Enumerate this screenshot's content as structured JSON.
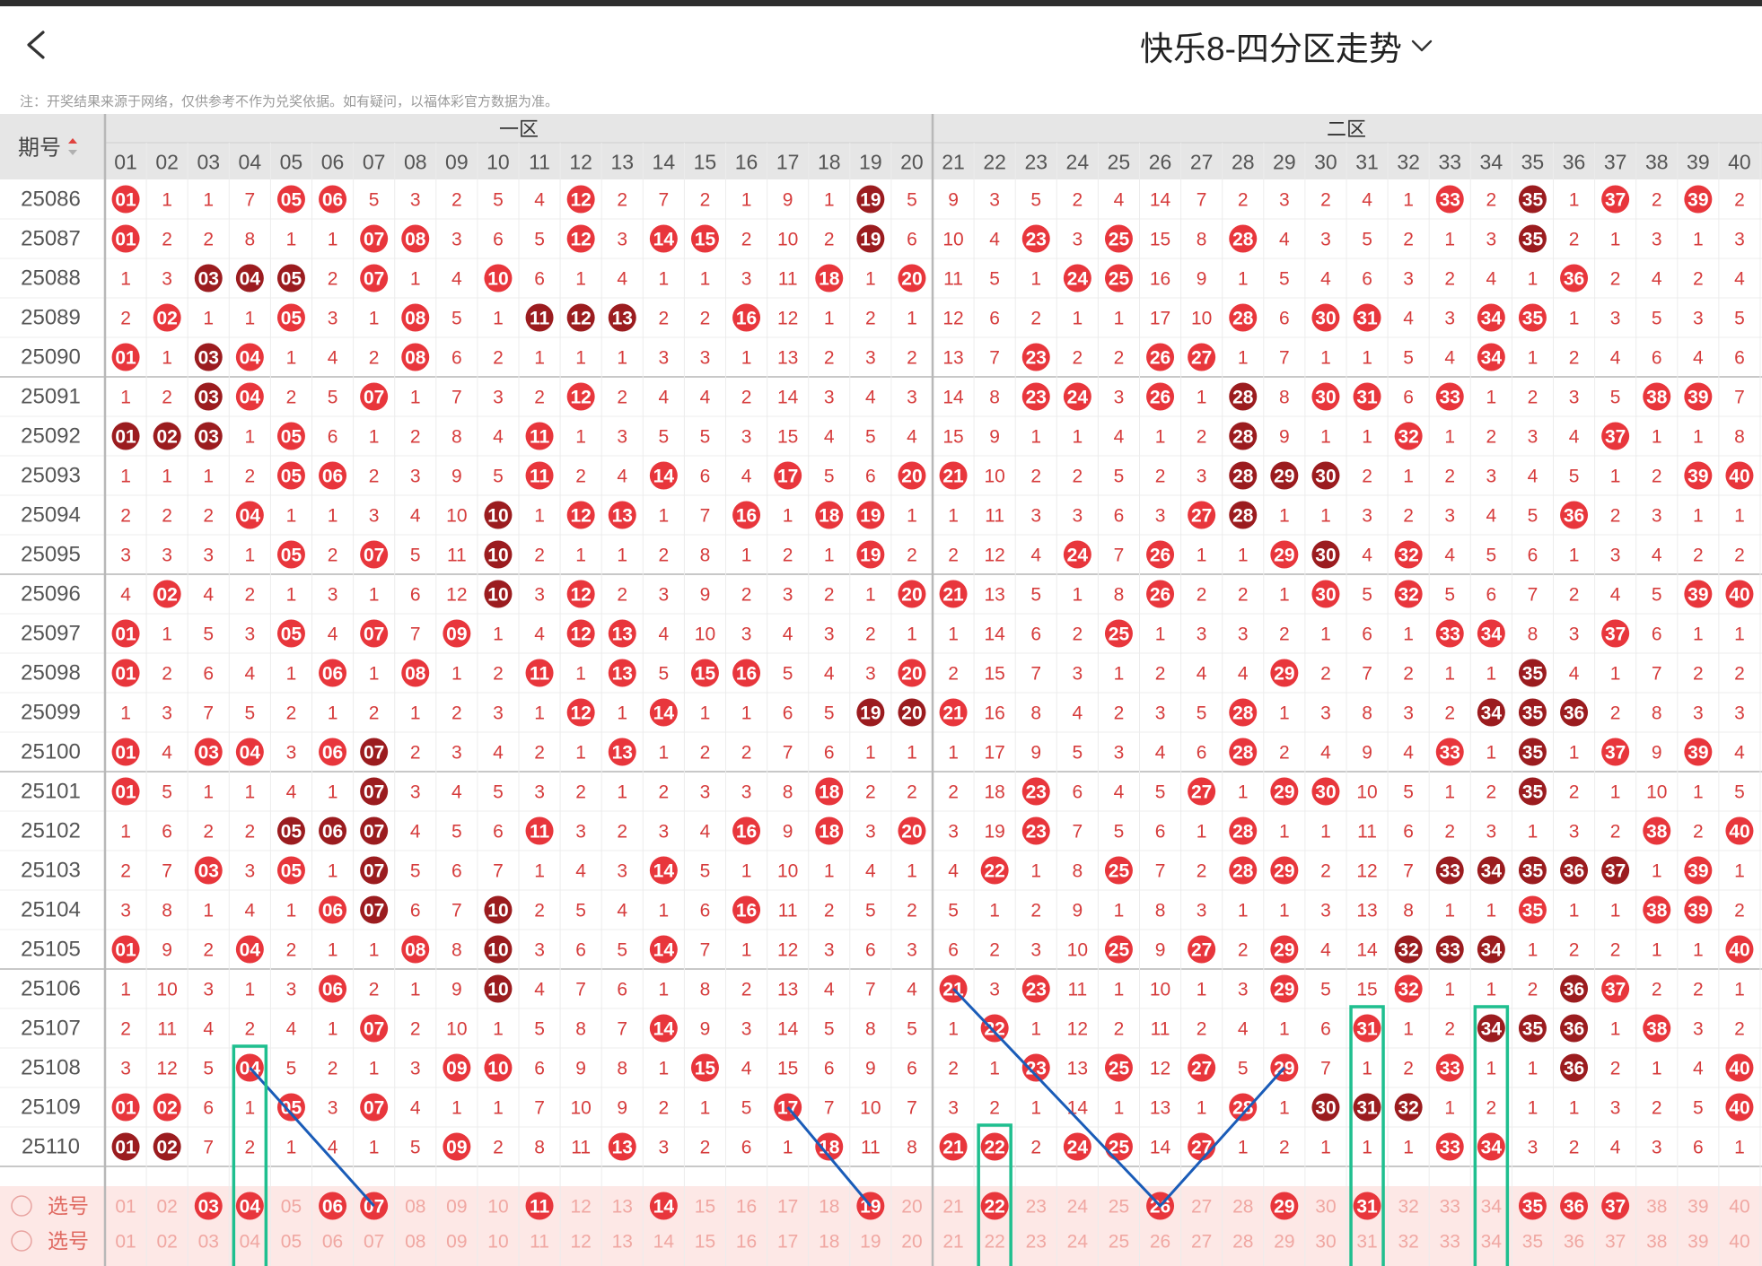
{
  "header": {
    "title": "快乐8-四分区走势",
    "back_icon": "chevron-left-icon",
    "dropdown_icon": "chevron-down-icon"
  },
  "note": "注：开奖结果来源于网络，仅供参考不作为兑奖依据。如有疑问，以福体彩官方数据为准。",
  "table": {
    "period_header": "期号",
    "zones": [
      "一区",
      "二区"
    ],
    "select_label": "选号",
    "colors": {
      "hit": "#e8363c",
      "repeat": "#9b1c1f",
      "miss_text": "#d63c3c",
      "period_text": "#555555",
      "header_bg": "#e6e6e6",
      "select_bg": "#fde8e6",
      "highlight_box": "#1fbf8f",
      "trend_line": "#1a5cb8"
    },
    "rows": [
      {
        "period": "25086",
        "cells": [
          "01",
          "1",
          "1",
          "7",
          "05",
          "06",
          "5",
          "3",
          "2",
          "5",
          "4",
          "12",
          "2",
          "7",
          "2",
          "1",
          "9",
          "1",
          "19",
          "5",
          "9",
          "3",
          "5",
          "2",
          "4",
          "14",
          "7",
          "2",
          "3",
          "2",
          "4",
          "1",
          "33",
          "2",
          "35",
          "1",
          "37",
          "2",
          "39",
          "2"
        ],
        "dark": [
          "19",
          "35"
        ]
      },
      {
        "period": "25087",
        "cells": [
          "01",
          "2",
          "2",
          "8",
          "1",
          "1",
          "07",
          "08",
          "3",
          "6",
          "5",
          "12",
          "3",
          "14",
          "15",
          "2",
          "10",
          "2",
          "19",
          "6",
          "10",
          "4",
          "23",
          "3",
          "25",
          "15",
          "8",
          "28",
          "4",
          "3",
          "5",
          "2",
          "1",
          "3",
          "35",
          "2",
          "1",
          "3",
          "1",
          "3"
        ],
        "dark": [
          "19",
          "35"
        ]
      },
      {
        "period": "25088",
        "cells": [
          "1",
          "3",
          "03",
          "04",
          "05",
          "2",
          "07",
          "1",
          "4",
          "10",
          "6",
          "1",
          "4",
          "1",
          "1",
          "3",
          "11",
          "18",
          "1",
          "20",
          "11",
          "5",
          "1",
          "24",
          "25",
          "16",
          "9",
          "1",
          "5",
          "4",
          "6",
          "3",
          "2",
          "4",
          "1",
          "36",
          "2",
          "4",
          "2",
          "4"
        ],
        "dark": [
          "03",
          "04",
          "05"
        ]
      },
      {
        "period": "25089",
        "cells": [
          "2",
          "02",
          "1",
          "1",
          "05",
          "3",
          "1",
          "08",
          "5",
          "1",
          "11",
          "12",
          "13",
          "2",
          "2",
          "16",
          "12",
          "1",
          "2",
          "1",
          "12",
          "6",
          "2",
          "1",
          "1",
          "17",
          "10",
          "28",
          "6",
          "30",
          "31",
          "4",
          "3",
          "34",
          "35",
          "1",
          "3",
          "5",
          "3",
          "5"
        ],
        "dark": [
          "11",
          "12",
          "13"
        ]
      },
      {
        "period": "25090",
        "cells": [
          "01",
          "1",
          "03",
          "04",
          "1",
          "4",
          "2",
          "08",
          "6",
          "2",
          "1",
          "1",
          "1",
          "3",
          "3",
          "1",
          "13",
          "2",
          "3",
          "2",
          "13",
          "7",
          "23",
          "2",
          "2",
          "26",
          "27",
          "1",
          "7",
          "1",
          "1",
          "5",
          "4",
          "34",
          "1",
          "2",
          "4",
          "6",
          "4",
          "6"
        ],
        "dark": [
          "03"
        ]
      },
      {
        "period": "25091",
        "cells": [
          "1",
          "2",
          "03",
          "04",
          "2",
          "5",
          "07",
          "1",
          "7",
          "3",
          "2",
          "12",
          "2",
          "4",
          "4",
          "2",
          "14",
          "3",
          "4",
          "3",
          "14",
          "8",
          "23",
          "24",
          "3",
          "26",
          "1",
          "28",
          "8",
          "30",
          "31",
          "6",
          "33",
          "1",
          "2",
          "3",
          "5",
          "38",
          "39",
          "7"
        ],
        "dark": [
          "03",
          "28"
        ]
      },
      {
        "period": "25092",
        "cells": [
          "01",
          "02",
          "03",
          "1",
          "05",
          "6",
          "1",
          "2",
          "8",
          "4",
          "11",
          "1",
          "3",
          "5",
          "5",
          "3",
          "15",
          "4",
          "5",
          "4",
          "15",
          "9",
          "1",
          "1",
          "4",
          "1",
          "2",
          "28",
          "9",
          "1",
          "1",
          "32",
          "1",
          "2",
          "3",
          "4",
          "37",
          "1",
          "1",
          "8"
        ],
        "dark": [
          "01",
          "02",
          "03",
          "28"
        ]
      },
      {
        "period": "25093",
        "cells": [
          "1",
          "1",
          "1",
          "2",
          "05",
          "06",
          "2",
          "3",
          "9",
          "5",
          "11",
          "2",
          "4",
          "14",
          "6",
          "4",
          "17",
          "5",
          "6",
          "20",
          "21",
          "10",
          "2",
          "2",
          "5",
          "2",
          "3",
          "28",
          "29",
          "30",
          "2",
          "1",
          "2",
          "3",
          "4",
          "5",
          "1",
          "2",
          "39",
          "40"
        ],
        "dark": [
          "28",
          "29",
          "30"
        ]
      },
      {
        "period": "25094",
        "cells": [
          "2",
          "2",
          "2",
          "04",
          "1",
          "1",
          "3",
          "4",
          "10",
          "10",
          "1",
          "12",
          "13",
          "1",
          "7",
          "16",
          "1",
          "18",
          "19",
          "1",
          "1",
          "11",
          "3",
          "3",
          "6",
          "3",
          "27",
          "28",
          "1",
          "1",
          "3",
          "2",
          "3",
          "4",
          "5",
          "36",
          "2",
          "3",
          "1",
          "1"
        ],
        "dark": [
          "10",
          "28"
        ]
      },
      {
        "period": "25095",
        "cells": [
          "3",
          "3",
          "3",
          "1",
          "05",
          "2",
          "07",
          "5",
          "11",
          "10",
          "2",
          "1",
          "1",
          "2",
          "8",
          "1",
          "2",
          "1",
          "19",
          "2",
          "2",
          "12",
          "4",
          "24",
          "7",
          "26",
          "1",
          "1",
          "29",
          "30",
          "4",
          "32",
          "4",
          "5",
          "6",
          "1",
          "3",
          "4",
          "2",
          "2"
        ],
        "dark": [
          "10",
          "30"
        ]
      },
      {
        "period": "25096",
        "cells": [
          "4",
          "02",
          "4",
          "2",
          "1",
          "3",
          "1",
          "6",
          "12",
          "10",
          "3",
          "12",
          "2",
          "3",
          "9",
          "2",
          "3",
          "2",
          "1",
          "20",
          "21",
          "13",
          "5",
          "1",
          "8",
          "26",
          "2",
          "2",
          "1",
          "30",
          "5",
          "32",
          "5",
          "6",
          "7",
          "2",
          "4",
          "5",
          "39",
          "40"
        ],
        "dark": [
          "10"
        ]
      },
      {
        "period": "25097",
        "cells": [
          "01",
          "1",
          "5",
          "3",
          "05",
          "4",
          "07",
          "7",
          "09",
          "1",
          "4",
          "12",
          "13",
          "4",
          "10",
          "3",
          "4",
          "3",
          "2",
          "1",
          "1",
          "14",
          "6",
          "2",
          "25",
          "1",
          "3",
          "3",
          "2",
          "1",
          "6",
          "1",
          "33",
          "34",
          "8",
          "3",
          "37",
          "6",
          "1",
          "1"
        ],
        "dark": []
      },
      {
        "period": "25098",
        "cells": [
          "01",
          "2",
          "6",
          "4",
          "1",
          "06",
          "1",
          "08",
          "1",
          "2",
          "11",
          "1",
          "13",
          "5",
          "15",
          "16",
          "5",
          "4",
          "3",
          "20",
          "2",
          "15",
          "7",
          "3",
          "1",
          "2",
          "4",
          "4",
          "29",
          "2",
          "7",
          "2",
          "1",
          "1",
          "35",
          "4",
          "1",
          "7",
          "2",
          "2"
        ],
        "dark": [
          "35"
        ]
      },
      {
        "period": "25099",
        "cells": [
          "1",
          "3",
          "7",
          "5",
          "2",
          "1",
          "2",
          "1",
          "2",
          "3",
          "1",
          "12",
          "1",
          "14",
          "1",
          "1",
          "6",
          "5",
          "19",
          "20",
          "21",
          "16",
          "8",
          "4",
          "2",
          "3",
          "5",
          "28",
          "1",
          "3",
          "8",
          "3",
          "2",
          "34",
          "35",
          "36",
          "2",
          "8",
          "3",
          "3"
        ],
        "dark": [
          "19",
          "20",
          "34",
          "35",
          "36"
        ]
      },
      {
        "period": "25100",
        "cells": [
          "01",
          "4",
          "03",
          "04",
          "3",
          "06",
          "07",
          "2",
          "3",
          "4",
          "2",
          "1",
          "13",
          "1",
          "2",
          "2",
          "7",
          "6",
          "1",
          "1",
          "1",
          "17",
          "9",
          "5",
          "3",
          "4",
          "6",
          "28",
          "2",
          "4",
          "9",
          "4",
          "33",
          "1",
          "35",
          "1",
          "37",
          "9",
          "39",
          "4"
        ],
        "dark": [
          "07",
          "35"
        ]
      },
      {
        "period": "25101",
        "cells": [
          "01",
          "5",
          "1",
          "1",
          "4",
          "1",
          "07",
          "3",
          "4",
          "5",
          "3",
          "2",
          "1",
          "2",
          "3",
          "3",
          "8",
          "18",
          "2",
          "2",
          "2",
          "18",
          "23",
          "6",
          "4",
          "5",
          "27",
          "1",
          "29",
          "30",
          "10",
          "5",
          "1",
          "2",
          "35",
          "2",
          "1",
          "10",
          "1",
          "5"
        ],
        "dark": [
          "07",
          "35"
        ]
      },
      {
        "period": "25102",
        "cells": [
          "1",
          "6",
          "2",
          "2",
          "05",
          "06",
          "07",
          "4",
          "5",
          "6",
          "11",
          "3",
          "2",
          "3",
          "4",
          "16",
          "9",
          "18",
          "3",
          "20",
          "3",
          "19",
          "23",
          "7",
          "5",
          "6",
          "1",
          "28",
          "1",
          "1",
          "11",
          "6",
          "2",
          "3",
          "1",
          "3",
          "2",
          "38",
          "2",
          "40"
        ],
        "dark": [
          "05",
          "06",
          "07"
        ]
      },
      {
        "period": "25103",
        "cells": [
          "2",
          "7",
          "03",
          "3",
          "05",
          "1",
          "07",
          "5",
          "6",
          "7",
          "1",
          "4",
          "3",
          "14",
          "5",
          "1",
          "10",
          "1",
          "4",
          "1",
          "4",
          "22",
          "1",
          "8",
          "25",
          "7",
          "2",
          "28",
          "29",
          "2",
          "12",
          "7",
          "33",
          "34",
          "35",
          "36",
          "37",
          "1",
          "39",
          "1"
        ],
        "dark": [
          "07",
          "33",
          "34",
          "35",
          "36",
          "37"
        ]
      },
      {
        "period": "25104",
        "cells": [
          "3",
          "8",
          "1",
          "4",
          "1",
          "06",
          "07",
          "6",
          "7",
          "10",
          "2",
          "5",
          "4",
          "1",
          "6",
          "16",
          "11",
          "2",
          "5",
          "2",
          "5",
          "1",
          "2",
          "9",
          "1",
          "8",
          "3",
          "1",
          "1",
          "3",
          "13",
          "8",
          "1",
          "1",
          "35",
          "1",
          "1",
          "38",
          "39",
          "2"
        ],
        "dark": [
          "07",
          "10"
        ]
      },
      {
        "period": "25105",
        "cells": [
          "01",
          "9",
          "2",
          "04",
          "2",
          "1",
          "1",
          "08",
          "8",
          "10",
          "3",
          "6",
          "5",
          "14",
          "7",
          "1",
          "12",
          "3",
          "6",
          "3",
          "6",
          "2",
          "3",
          "10",
          "25",
          "9",
          "27",
          "2",
          "29",
          "4",
          "14",
          "32",
          "33",
          "34",
          "1",
          "2",
          "2",
          "1",
          "1",
          "40"
        ],
        "dark": [
          "10",
          "32",
          "33",
          "34"
        ]
      },
      {
        "period": "25106",
        "cells": [
          "1",
          "10",
          "3",
          "1",
          "3",
          "06",
          "2",
          "1",
          "9",
          "10",
          "4",
          "7",
          "6",
          "1",
          "8",
          "2",
          "13",
          "4",
          "7",
          "4",
          "21",
          "3",
          "23",
          "11",
          "1",
          "10",
          "1",
          "3",
          "29",
          "5",
          "15",
          "32",
          "1",
          "1",
          "2",
          "36",
          "37",
          "2",
          "2",
          "1"
        ],
        "dark": [
          "10",
          "36"
        ]
      },
      {
        "period": "25107",
        "cells": [
          "2",
          "11",
          "4",
          "2",
          "4",
          "1",
          "07",
          "2",
          "10",
          "1",
          "5",
          "8",
          "7",
          "14",
          "9",
          "3",
          "14",
          "5",
          "8",
          "5",
          "1",
          "22",
          "1",
          "12",
          "2",
          "11",
          "2",
          "4",
          "1",
          "6",
          "31",
          "1",
          "2",
          "34",
          "35",
          "36",
          "1",
          "38",
          "3",
          "2"
        ],
        "dark": [
          "34",
          "35",
          "36"
        ]
      },
      {
        "period": "25108",
        "cells": [
          "3",
          "12",
          "5",
          "04",
          "5",
          "2",
          "1",
          "3",
          "09",
          "10",
          "6",
          "9",
          "8",
          "1",
          "15",
          "4",
          "15",
          "6",
          "9",
          "6",
          "2",
          "1",
          "23",
          "13",
          "25",
          "12",
          "27",
          "5",
          "29",
          "7",
          "1",
          "2",
          "33",
          "1",
          "1",
          "36",
          "2",
          "1",
          "4",
          "40"
        ],
        "dark": [
          "36"
        ]
      },
      {
        "period": "25109",
        "cells": [
          "01",
          "02",
          "6",
          "1",
          "05",
          "3",
          "07",
          "4",
          "1",
          "1",
          "7",
          "10",
          "9",
          "2",
          "1",
          "5",
          "17",
          "7",
          "10",
          "7",
          "3",
          "2",
          "1",
          "14",
          "1",
          "13",
          "1",
          "28",
          "1",
          "30",
          "31",
          "32",
          "1",
          "2",
          "1",
          "1",
          "3",
          "2",
          "5",
          "40"
        ],
        "dark": [
          "30",
          "31",
          "32"
        ]
      },
      {
        "period": "25110",
        "cells": [
          "01",
          "02",
          "7",
          "2",
          "1",
          "4",
          "1",
          "5",
          "09",
          "2",
          "8",
          "11",
          "13",
          "3",
          "2",
          "6",
          "1",
          "18",
          "11",
          "8",
          "21",
          "22",
          "2",
          "24",
          "25",
          "14",
          "27",
          "1",
          "2",
          "1",
          "1",
          "1",
          "33",
          "34",
          "3",
          "2",
          "4",
          "3",
          "6",
          "1"
        ],
        "dark": [
          "01",
          "02"
        ]
      }
    ],
    "select_row_1": {
      "picked": [
        "03",
        "04",
        "06",
        "07",
        "11",
        "14",
        "19",
        "22",
        "26",
        "29",
        "31",
        "35",
        "36",
        "37"
      ]
    },
    "select_row_2": {
      "picked": []
    }
  }
}
